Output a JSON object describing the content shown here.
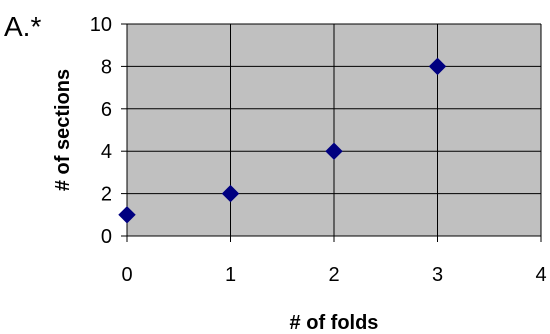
{
  "panel_label": "A.*",
  "colors": {
    "plot_background": "#C0C0C0",
    "gridline": "#000000",
    "marker": "#000080"
  },
  "chart_data": {
    "type": "scatter",
    "marker": "diamond",
    "xlabel": "# of folds",
    "ylabel": "# of sections",
    "xlim": [
      0,
      4
    ],
    "ylim": [
      0,
      10
    ],
    "x_ticks": [
      0,
      1,
      2,
      3,
      4
    ],
    "y_ticks": [
      0,
      2,
      4,
      6,
      8,
      10
    ],
    "grid": true,
    "series": [
      {
        "x": [
          0,
          1,
          2,
          3
        ],
        "y": [
          1,
          2,
          4,
          8
        ]
      }
    ]
  }
}
